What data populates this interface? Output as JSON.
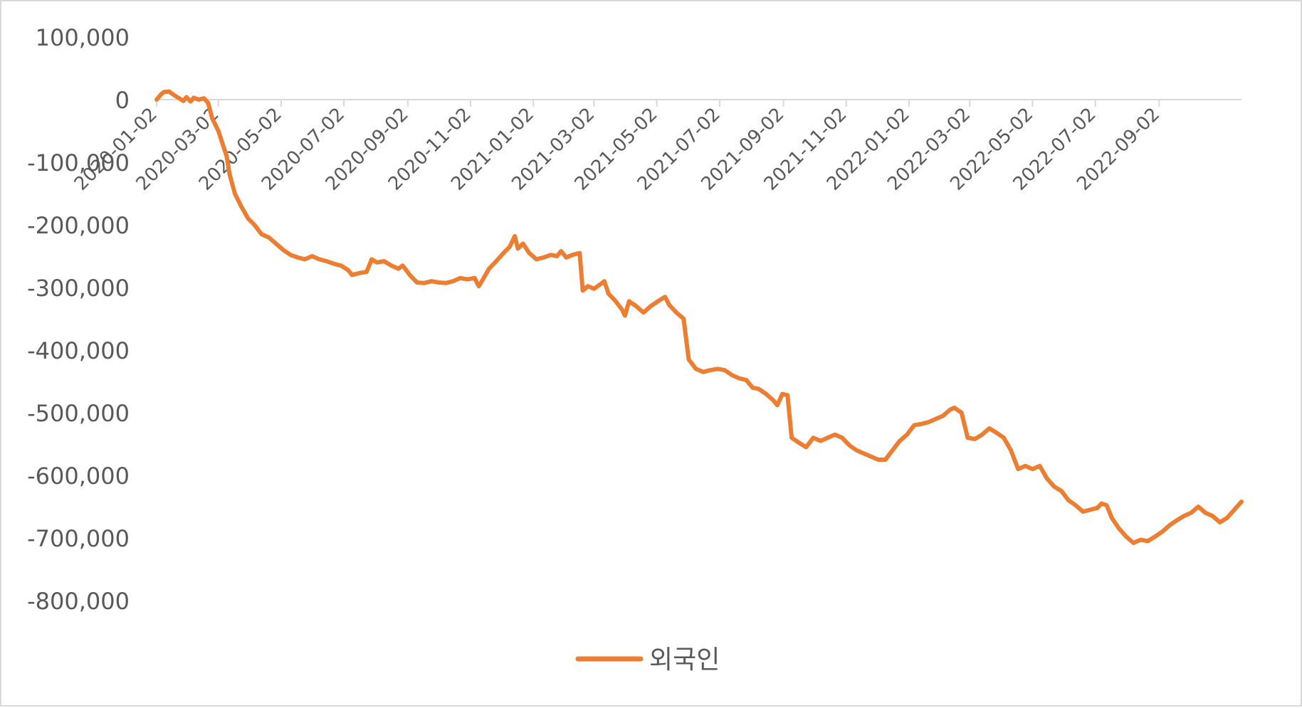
{
  "chart_data": {
    "type": "line",
    "title": "",
    "xlabel": "",
    "ylabel": "",
    "ylim": [
      -800000,
      100000
    ],
    "yticks": [
      100000,
      0,
      -100000,
      -200000,
      -300000,
      -400000,
      -500000,
      -600000,
      -700000,
      -800000
    ],
    "ytick_labels": [
      "100,000",
      "0",
      "-100,000",
      "-200,000",
      "-300,000",
      "-400,000",
      "-500,000",
      "-600,000",
      "-700,000",
      "-800,000"
    ],
    "x_tick_labels": [
      "2020-01-02",
      "2020-03-02",
      "2020-05-02",
      "2020-07-02",
      "2020-09-02",
      "2020-11-02",
      "2021-01-02",
      "2021-03-02",
      "2021-05-02",
      "2021-07-02",
      "2021-09-02",
      "2021-11-02",
      "2022-01-02",
      "2022-03-02",
      "2022-05-02",
      "2022-07-02",
      "2022-09-02"
    ],
    "x_range": [
      "2020-01-02",
      "2022-11-21"
    ],
    "grid": false,
    "legend_position": "bottom",
    "series": [
      {
        "name": "외국인",
        "color": "#ed7d31",
        "points": [
          [
            "2020-01-02",
            0
          ],
          [
            "2020-01-06",
            8000
          ],
          [
            "2020-01-09",
            12000
          ],
          [
            "2020-01-14",
            13000
          ],
          [
            "2020-01-20",
            6000
          ],
          [
            "2020-01-24",
            2000
          ],
          [
            "2020-01-28",
            -2000
          ],
          [
            "2020-01-31",
            4000
          ],
          [
            "2020-02-04",
            -3000
          ],
          [
            "2020-02-07",
            3000
          ],
          [
            "2020-02-12",
            0
          ],
          [
            "2020-02-17",
            2000
          ],
          [
            "2020-02-21",
            -5000
          ],
          [
            "2020-02-25",
            -30000
          ],
          [
            "2020-03-02",
            -50000
          ],
          [
            "2020-03-06",
            -70000
          ],
          [
            "2020-03-10",
            -90000
          ],
          [
            "2020-03-13",
            -120000
          ],
          [
            "2020-03-18",
            -150000
          ],
          [
            "2020-03-24",
            -170000
          ],
          [
            "2020-03-31",
            -190000
          ],
          [
            "2020-04-06",
            -200000
          ],
          [
            "2020-04-13",
            -215000
          ],
          [
            "2020-04-20",
            -220000
          ],
          [
            "2020-04-27",
            -230000
          ],
          [
            "2020-05-04",
            -240000
          ],
          [
            "2020-05-11",
            -248000
          ],
          [
            "2020-05-18",
            -252000
          ],
          [
            "2020-05-25",
            -255000
          ],
          [
            "2020-06-01",
            -250000
          ],
          [
            "2020-06-08",
            -255000
          ],
          [
            "2020-06-15",
            -258000
          ],
          [
            "2020-06-22",
            -262000
          ],
          [
            "2020-06-29",
            -265000
          ],
          [
            "2020-07-06",
            -272000
          ],
          [
            "2020-07-10",
            -280000
          ],
          [
            "2020-07-17",
            -277000
          ],
          [
            "2020-07-24",
            -275000
          ],
          [
            "2020-07-29",
            -255000
          ],
          [
            "2020-08-03",
            -260000
          ],
          [
            "2020-08-10",
            -258000
          ],
          [
            "2020-08-17",
            -265000
          ],
          [
            "2020-08-24",
            -270000
          ],
          [
            "2020-08-28",
            -265000
          ],
          [
            "2020-09-04",
            -280000
          ],
          [
            "2020-09-11",
            -292000
          ],
          [
            "2020-09-18",
            -293000
          ],
          [
            "2020-09-25",
            -290000
          ],
          [
            "2020-10-02",
            -292000
          ],
          [
            "2020-10-09",
            -293000
          ],
          [
            "2020-10-16",
            -290000
          ],
          [
            "2020-10-23",
            -285000
          ],
          [
            "2020-10-30",
            -287000
          ],
          [
            "2020-11-06",
            -285000
          ],
          [
            "2020-11-10",
            -298000
          ],
          [
            "2020-11-13",
            -290000
          ],
          [
            "2020-11-20",
            -270000
          ],
          [
            "2020-11-27",
            -258000
          ],
          [
            "2020-12-04",
            -245000
          ],
          [
            "2020-12-10",
            -235000
          ],
          [
            "2020-12-15",
            -218000
          ],
          [
            "2020-12-18",
            -238000
          ],
          [
            "2020-12-23",
            -230000
          ],
          [
            "2020-12-29",
            -245000
          ],
          [
            "2021-01-05",
            -255000
          ],
          [
            "2021-01-12",
            -252000
          ],
          [
            "2021-01-19",
            -248000
          ],
          [
            "2021-01-25",
            -250000
          ],
          [
            "2021-01-29",
            -242000
          ],
          [
            "2021-02-03",
            -252000
          ],
          [
            "2021-02-09",
            -248000
          ],
          [
            "2021-02-16",
            -245000
          ],
          [
            "2021-02-19",
            -305000
          ],
          [
            "2021-02-24",
            -298000
          ],
          [
            "2021-03-02",
            -302000
          ],
          [
            "2021-03-08",
            -295000
          ],
          [
            "2021-03-12",
            -290000
          ],
          [
            "2021-03-16",
            -310000
          ],
          [
            "2021-03-22",
            -320000
          ],
          [
            "2021-03-29",
            -335000
          ],
          [
            "2021-04-01",
            -345000
          ],
          [
            "2021-04-05",
            -322000
          ],
          [
            "2021-04-12",
            -330000
          ],
          [
            "2021-04-19",
            -340000
          ],
          [
            "2021-04-26",
            -330000
          ],
          [
            "2021-05-03",
            -322000
          ],
          [
            "2021-05-10",
            -315000
          ],
          [
            "2021-05-14",
            -328000
          ],
          [
            "2021-05-21",
            -340000
          ],
          [
            "2021-05-28",
            -350000
          ],
          [
            "2021-06-02",
            -415000
          ],
          [
            "2021-06-09",
            -430000
          ],
          [
            "2021-06-16",
            -435000
          ],
          [
            "2021-06-23",
            -432000
          ],
          [
            "2021-06-30",
            -430000
          ],
          [
            "2021-07-07",
            -432000
          ],
          [
            "2021-07-14",
            -440000
          ],
          [
            "2021-07-21",
            -445000
          ],
          [
            "2021-07-28",
            -448000
          ],
          [
            "2021-08-03",
            -460000
          ],
          [
            "2021-08-09",
            -462000
          ],
          [
            "2021-08-16",
            -470000
          ],
          [
            "2021-08-23",
            -480000
          ],
          [
            "2021-08-27",
            -488000
          ],
          [
            "2021-09-01",
            -470000
          ],
          [
            "2021-09-06",
            -472000
          ],
          [
            "2021-09-10",
            -540000
          ],
          [
            "2021-09-17",
            -548000
          ],
          [
            "2021-09-24",
            -555000
          ],
          [
            "2021-10-01",
            -540000
          ],
          [
            "2021-10-08",
            -545000
          ],
          [
            "2021-10-15",
            -540000
          ],
          [
            "2021-10-22",
            -535000
          ],
          [
            "2021-10-29",
            -540000
          ],
          [
            "2021-11-05",
            -552000
          ],
          [
            "2021-11-12",
            -560000
          ],
          [
            "2021-11-19",
            -565000
          ],
          [
            "2021-11-26",
            -570000
          ],
          [
            "2021-12-03",
            -575000
          ],
          [
            "2021-12-10",
            -575000
          ],
          [
            "2021-12-17",
            -560000
          ],
          [
            "2021-12-24",
            -545000
          ],
          [
            "2021-12-31",
            -535000
          ],
          [
            "2022-01-07",
            -520000
          ],
          [
            "2022-01-14",
            -518000
          ],
          [
            "2022-01-21",
            -515000
          ],
          [
            "2022-01-28",
            -510000
          ],
          [
            "2022-02-04",
            -505000
          ],
          [
            "2022-02-11",
            -495000
          ],
          [
            "2022-02-15",
            -492000
          ],
          [
            "2022-02-22",
            -500000
          ],
          [
            "2022-02-28",
            -540000
          ],
          [
            "2022-03-07",
            -542000
          ],
          [
            "2022-03-14",
            -535000
          ],
          [
            "2022-03-21",
            -525000
          ],
          [
            "2022-03-28",
            -532000
          ],
          [
            "2022-04-04",
            -540000
          ],
          [
            "2022-04-11",
            -560000
          ],
          [
            "2022-04-18",
            -590000
          ],
          [
            "2022-04-25",
            -585000
          ],
          [
            "2022-05-02",
            -590000
          ],
          [
            "2022-05-09",
            -585000
          ],
          [
            "2022-05-16",
            -605000
          ],
          [
            "2022-05-23",
            -618000
          ],
          [
            "2022-05-30",
            -625000
          ],
          [
            "2022-06-06",
            -640000
          ],
          [
            "2022-06-13",
            -648000
          ],
          [
            "2022-06-20",
            -658000
          ],
          [
            "2022-06-27",
            -655000
          ],
          [
            "2022-07-04",
            -652000
          ],
          [
            "2022-07-08",
            -645000
          ],
          [
            "2022-07-13",
            -648000
          ],
          [
            "2022-07-18",
            -668000
          ],
          [
            "2022-07-25",
            -685000
          ],
          [
            "2022-08-01",
            -698000
          ],
          [
            "2022-08-08",
            -708000
          ],
          [
            "2022-08-15",
            -703000
          ],
          [
            "2022-08-22",
            -705000
          ],
          [
            "2022-08-29",
            -698000
          ],
          [
            "2022-09-05",
            -690000
          ],
          [
            "2022-09-12",
            -680000
          ],
          [
            "2022-09-19",
            -672000
          ],
          [
            "2022-09-26",
            -665000
          ],
          [
            "2022-10-03",
            -660000
          ],
          [
            "2022-10-10",
            -650000
          ],
          [
            "2022-10-17",
            -660000
          ],
          [
            "2022-10-24",
            -665000
          ],
          [
            "2022-10-31",
            -675000
          ],
          [
            "2022-11-07",
            -668000
          ],
          [
            "2022-11-14",
            -655000
          ],
          [
            "2022-11-21",
            -642000
          ]
        ]
      }
    ]
  }
}
